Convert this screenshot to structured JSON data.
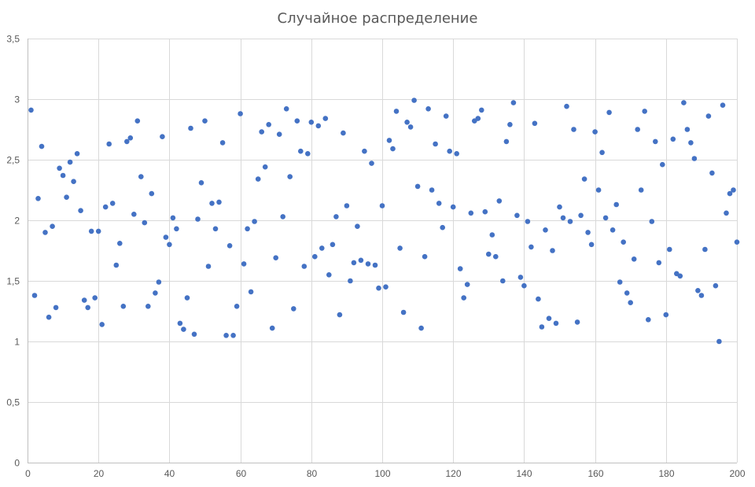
{
  "chart_data": {
    "type": "scatter",
    "title": "Случайное распределение",
    "xlabel": "",
    "ylabel": "",
    "xlim": [
      0,
      200
    ],
    "ylim": [
      0,
      3.5
    ],
    "x_ticks": [
      "0",
      "20",
      "40",
      "60",
      "80",
      "100",
      "120",
      "140",
      "160",
      "180",
      "200"
    ],
    "y_ticks": [
      "0",
      "0,5",
      "1",
      "1,5",
      "2",
      "2,5",
      "3",
      "3,5"
    ],
    "grid": true,
    "legend": "none",
    "marker_color": "#4472c4",
    "series": [
      {
        "x": [
          1,
          2,
          3,
          4,
          5,
          6,
          7,
          8,
          9,
          10,
          11,
          12,
          13,
          14,
          15,
          16,
          17,
          18,
          19,
          20,
          21,
          22,
          23,
          24,
          25,
          26,
          27,
          28,
          29,
          30,
          31,
          32,
          33,
          34,
          35,
          36,
          37,
          38,
          39,
          40,
          41,
          42,
          43,
          44,
          45,
          46,
          47,
          48,
          49,
          50,
          51,
          52,
          53,
          54,
          55,
          56,
          57,
          58,
          59,
          60,
          61,
          62,
          63,
          64,
          65,
          66,
          67,
          68,
          69,
          70,
          71,
          72,
          73,
          74,
          75,
          76,
          77,
          78,
          79,
          80,
          81,
          82,
          83,
          84,
          85,
          86,
          87,
          88,
          89,
          90,
          91,
          92,
          93,
          94,
          95,
          96,
          97,
          98,
          99,
          100,
          101,
          102,
          103,
          104,
          105,
          106,
          107,
          108,
          109,
          110,
          111,
          112,
          113,
          114,
          115,
          116,
          117,
          118,
          119,
          120,
          121,
          122,
          123,
          124,
          125,
          126,
          127,
          128,
          129,
          130,
          131,
          132,
          133,
          134,
          135,
          136,
          137,
          138,
          139,
          140,
          141,
          142,
          143,
          144,
          145,
          146,
          147,
          148,
          149,
          150,
          151,
          152,
          153,
          154,
          155,
          156,
          157,
          158,
          159,
          160,
          161,
          162,
          163,
          164,
          165,
          166,
          167,
          168,
          169,
          170,
          171,
          172,
          173,
          174,
          175,
          176,
          177,
          178,
          179,
          180,
          181,
          182,
          183,
          184,
          185,
          186,
          187,
          188,
          189,
          190,
          191,
          192,
          193,
          194,
          195,
          196,
          197,
          198,
          199,
          200
        ],
        "y": [
          2.91,
          1.38,
          2.18,
          2.61,
          1.9,
          1.2,
          1.95,
          1.28,
          2.43,
          2.37,
          2.19,
          2.48,
          2.32,
          2.55,
          2.08,
          1.34,
          1.28,
          1.91,
          1.36,
          1.91,
          1.14,
          2.11,
          2.63,
          2.14,
          1.63,
          1.81,
          1.29,
          2.65,
          2.68,
          2.05,
          2.82,
          2.36,
          1.98,
          1.29,
          2.22,
          1.4,
          1.49,
          2.69,
          1.86,
          1.8,
          2.02,
          1.93,
          1.15,
          1.1,
          1.36,
          2.76,
          1.06,
          2.01,
          2.31,
          2.82,
          1.62,
          2.14,
          1.93,
          2.15,
          2.64,
          1.05,
          1.79,
          1.05,
          1.29,
          2.88,
          1.64,
          1.93,
          1.41,
          1.99,
          2.34,
          2.73,
          2.44,
          2.79,
          1.11,
          1.69,
          2.71,
          2.03,
          2.92,
          2.36,
          1.27,
          2.82,
          2.57,
          1.62,
          2.55,
          2.81,
          1.7,
          2.78,
          1.77,
          2.84,
          1.55,
          1.8,
          2.03,
          1.22,
          2.72,
          2.12,
          1.5,
          1.65,
          1.95,
          1.67,
          2.57,
          1.64,
          2.47,
          1.63,
          1.44,
          2.12,
          1.45,
          2.66,
          2.59,
          2.9,
          1.77,
          1.24,
          2.81,
          2.77,
          2.99,
          2.28,
          1.11,
          1.7,
          2.92,
          2.25,
          2.63,
          2.14,
          1.94,
          2.86,
          2.57,
          2.11,
          2.55,
          1.6,
          1.36,
          1.47,
          2.06,
          2.82,
          2.84,
          2.91,
          2.07,
          1.72,
          1.88,
          1.7,
          2.16,
          1.5,
          2.65,
          2.79,
          2.97,
          2.04,
          1.53,
          1.46,
          1.99,
          1.78,
          2.8,
          1.35,
          1.12,
          1.92,
          1.19,
          1.75,
          1.15,
          2.11,
          2.02,
          2.94,
          1.99,
          2.75,
          1.16,
          2.04,
          2.34,
          1.9,
          1.8,
          2.73,
          2.25,
          2.56,
          2.02,
          2.89,
          1.92,
          2.13,
          1.49,
          1.82,
          1.4,
          1.32,
          1.68,
          2.75,
          2.25,
          2.9,
          1.18,
          1.99,
          2.65,
          1.65,
          2.46,
          1.22,
          1.76,
          2.67,
          1.56,
          1.54,
          2.97,
          2.75,
          2.64,
          2.51,
          1.42,
          1.38,
          1.76,
          2.86,
          2.39,
          1.46,
          1.0,
          2.95,
          2.06,
          2.22,
          2.25,
          1.82
        ]
      }
    ]
  }
}
